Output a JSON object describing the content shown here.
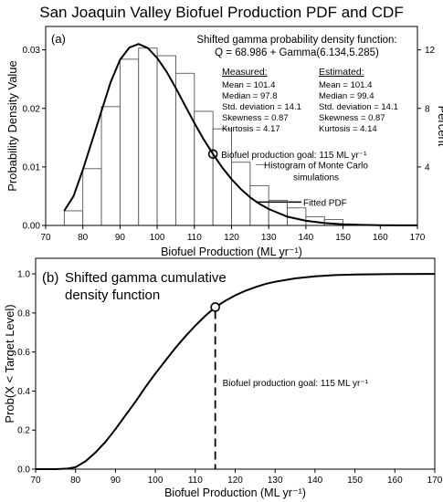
{
  "title": "San Joaquin Valley Biofuel Production PDF and CDF",
  "colors": {
    "axis": "#000000",
    "bar_stroke": "#555555",
    "bar_fill": "#ffffff",
    "curve": "#000000"
  },
  "chart_data": [
    {
      "type": "bar+line",
      "panel_label": "(a)",
      "xlabel": "Biofuel Production (ML yr⁻¹)",
      "ylabel": "Probability Density Value",
      "y2label": "Percent",
      "xlim": [
        70,
        170
      ],
      "ylim": [
        0,
        0.034
      ],
      "y2lim": [
        0,
        13.6
      ],
      "x_ticks": [
        70,
        80,
        90,
        100,
        110,
        120,
        130,
        140,
        150,
        160,
        170
      ],
      "y_ticks": [
        0,
        0.01,
        0.02,
        0.03
      ],
      "y_tick_labels": [
        "0.00",
        "0.01",
        "0.02",
        "0.03"
      ],
      "y2_ticks": [
        4,
        8,
        12
      ],
      "bin_width": 5,
      "histogram": {
        "name": "Histogram of Monte Carlo simulations",
        "bin_starts": [
          75,
          80,
          85,
          90,
          95,
          100,
          105,
          110,
          115,
          120,
          125,
          130,
          135,
          140,
          145
        ],
        "values": [
          0.0025,
          0.0097,
          0.0203,
          0.0284,
          0.0303,
          0.029,
          0.026,
          0.0195,
          0.0165,
          0.0108,
          0.0068,
          0.0043,
          0.003,
          0.0015,
          0.001
        ]
      },
      "pdf_curve": {
        "name": "Fitted PDF",
        "x": [
          75,
          77.5,
          80,
          82.5,
          85,
          87.5,
          90,
          92.5,
          95,
          97.5,
          100,
          102.5,
          105,
          107.5,
          110,
          112.5,
          115,
          117.5,
          120,
          122.5,
          125,
          127.5,
          130,
          135,
          140,
          145,
          150,
          155,
          160,
          165,
          170
        ],
        "y": [
          0.0025,
          0.005,
          0.0095,
          0.0145,
          0.0195,
          0.0245,
          0.0283,
          0.0304,
          0.031,
          0.0303,
          0.0286,
          0.0263,
          0.0235,
          0.0205,
          0.0175,
          0.0147,
          0.0122,
          0.0099,
          0.0079,
          0.0062,
          0.0048,
          0.0037,
          0.0028,
          0.0015,
          0.0008,
          0.0004,
          0.0002,
          0.0001,
          5e-05,
          2e-05,
          1e-05
        ]
      },
      "goal_point": {
        "x": 115,
        "y": 0.0122,
        "label": "Biofuel production goal: 115 ML yr⁻¹"
      },
      "annotations": {
        "pdf_title_line1": "Shifted gamma probability density function:",
        "pdf_title_line2": "Q = 68.986 + Gamma(6.134,5.285)",
        "histogram_label_line1": "Histogram of Monte Carlo",
        "histogram_label_line2": "simulations",
        "fitted_label": "Fitted PDF"
      },
      "stats": {
        "measured_header": "Measured:",
        "estimated_header": "Estimated:",
        "measured": [
          "Mean = 101.4",
          "Median = 97.8",
          "Std. deviation = 14.1",
          "Skewness = 0.87",
          "Kurtosis = 4.17"
        ],
        "estimated": [
          "Mean = 101.4",
          "Median = 99.4",
          "Std. deviation = 14.1",
          "Skewness = 0.87",
          "Kurtosis = 4.14"
        ]
      }
    },
    {
      "type": "line",
      "panel_label": "(b)",
      "title_line1": "Shifted gamma cumulative",
      "title_line2": "density function",
      "xlabel": "Biofuel Production (ML yr⁻¹)",
      "ylabel": "Prob(X < Target Level)",
      "xlim": [
        70,
        170
      ],
      "ylim": [
        0,
        1.08
      ],
      "x_ticks": [
        70,
        80,
        90,
        100,
        110,
        120,
        130,
        140,
        150,
        160,
        170
      ],
      "y_ticks": [
        0,
        0.2,
        0.4,
        0.6,
        0.8,
        1.0
      ],
      "y_tick_labels": [
        "0.0",
        "0.2",
        "0.4",
        "0.6",
        "0.8",
        "1.0"
      ],
      "cdf_curve": {
        "x": [
          70,
          75,
          78,
          80,
          82.5,
          85,
          87.5,
          90,
          92.5,
          95,
          97.5,
          100,
          102.5,
          105,
          107.5,
          110,
          112.5,
          115,
          117.5,
          120,
          122.5,
          125,
          127.5,
          130,
          135,
          140,
          145,
          150,
          160,
          170
        ],
        "y": [
          0.0,
          0.0,
          0.003,
          0.01,
          0.04,
          0.085,
          0.14,
          0.205,
          0.275,
          0.345,
          0.42,
          0.49,
          0.555,
          0.62,
          0.68,
          0.735,
          0.785,
          0.83,
          0.862,
          0.89,
          0.913,
          0.932,
          0.948,
          0.96,
          0.977,
          0.988,
          0.994,
          0.997,
          0.999,
          1.0
        ]
      },
      "goal_point": {
        "x": 115,
        "y": 0.83,
        "label": "Biofuel production goal: 115 ML yr⁻¹"
      }
    }
  ]
}
